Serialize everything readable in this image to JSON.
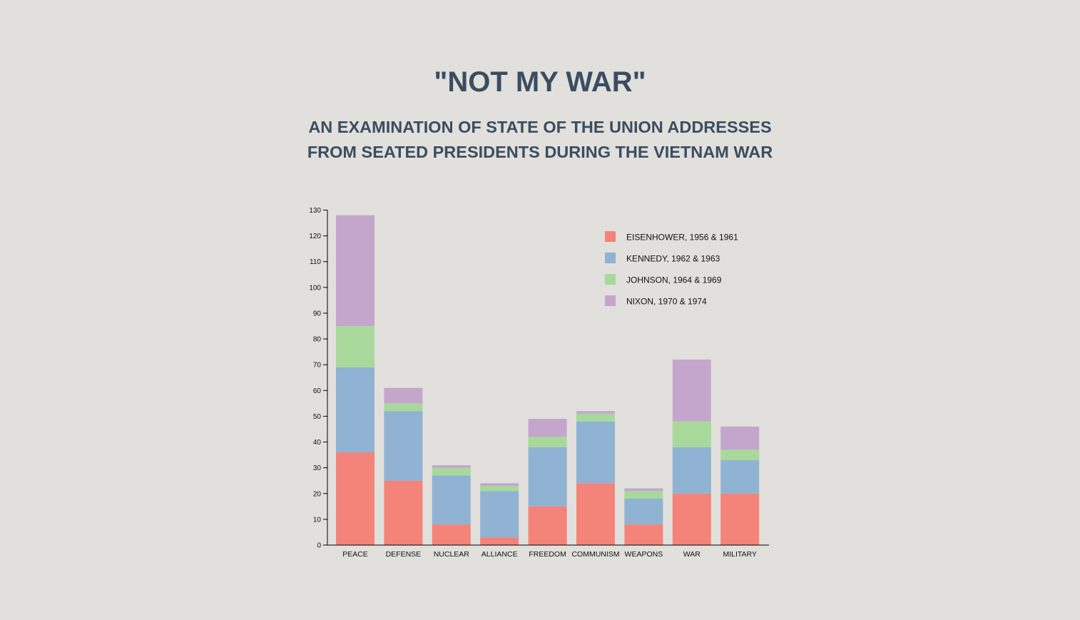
{
  "header": {
    "title": "\"NOT MY WAR\"",
    "subtitle_line1": "AN EXAMINATION OF STATE OF THE UNION ADDRESSES",
    "subtitle_line2": "FROM SEATED PRESIDENTS DURING THE VIETNAM WAR"
  },
  "chart_data": {
    "type": "bar",
    "stacked": true,
    "title": "",
    "xlabel": "",
    "ylabel": "",
    "ylim": [
      0,
      130
    ],
    "yticks": [
      0,
      10,
      20,
      30,
      40,
      50,
      60,
      70,
      80,
      90,
      100,
      110,
      120,
      130
    ],
    "grid": false,
    "legend_position": "top-right",
    "categories": [
      "PEACE",
      "DEFENSE",
      "NUCLEAR",
      "ALLIANCE",
      "FREEDOM",
      "COMMUNISM",
      "WEAPONS",
      "WAR",
      "MILITARY"
    ],
    "series": [
      {
        "name": "EISENHOWER, 1956 & 1961",
        "color": "#f4847a",
        "values": [
          36,
          25,
          8,
          3,
          15,
          24,
          8,
          20,
          20
        ]
      },
      {
        "name": "KENNEDY, 1962 & 1963",
        "color": "#90b2d3",
        "values": [
          33,
          27,
          19,
          18,
          23,
          24,
          10,
          18,
          13
        ]
      },
      {
        "name": "JOHNSON, 1964 & 1969",
        "color": "#a8d99a",
        "values": [
          16,
          3,
          3,
          2,
          4,
          3,
          3,
          10,
          4
        ]
      },
      {
        "name": "NIXON, 1970 & 1974",
        "color": "#c4a6cd",
        "values": [
          43,
          6,
          1,
          1,
          7,
          1,
          1,
          24,
          9
        ]
      }
    ]
  }
}
